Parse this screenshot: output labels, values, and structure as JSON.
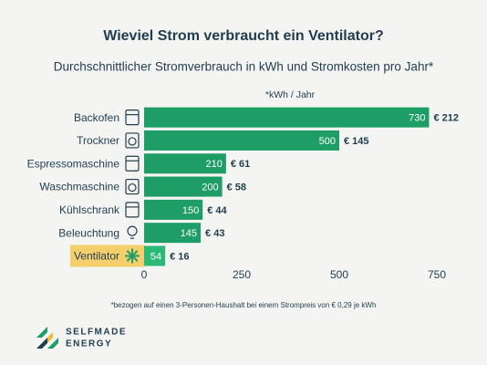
{
  "chart_data": {
    "type": "hbar",
    "title": "Wieviel Strom verbraucht ein Ventilator?",
    "subtitle": "Durchschnittlicher Stromverbrauch in kWh und Stromkosten pro Jahr*",
    "x_label": "*kWh / Jahr",
    "categories": [
      "Backofen",
      "Trockner",
      "Espressomaschine",
      "Waschmaschine",
      "Kühlschrank",
      "Beleuchtung",
      "Ventilator"
    ],
    "values": [
      730,
      500,
      210,
      200,
      150,
      145,
      54
    ],
    "cost_labels": [
      "€ 212",
      "€ 145",
      "€ 61",
      "€ 58",
      "€ 44",
      "€ 43",
      "€ 16"
    ],
    "colors": [
      "#1f9d66",
      "#1f9d66",
      "#1f9d66",
      "#1f9d66",
      "#1f9d66",
      "#1f9d66",
      "#2bb877"
    ],
    "highlight_index": 6,
    "highlight_color": "#f6cf6d",
    "xlim": [
      0,
      750
    ],
    "xticks": [
      0,
      250,
      500,
      750
    ],
    "footnote": "*bezogen auf einen 3-Personen-Haushalt bei einem Strompreis von € 0,29 je kWh",
    "logo": [
      "SELFMADE",
      "ENERGY"
    ]
  }
}
